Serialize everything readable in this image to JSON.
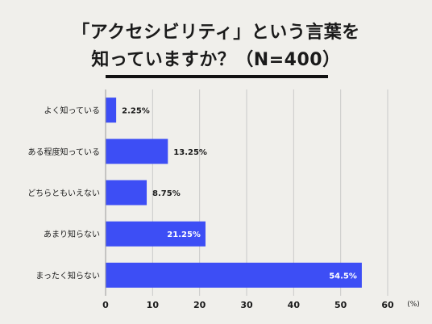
{
  "colors": {
    "bar": "#3d4ef5",
    "background": "#f0efeb",
    "grid": "#c9c9c9"
  },
  "chart_data": {
    "type": "bar",
    "orientation": "horizontal",
    "title": "「アクセシビリティ」という言葉を",
    "subtitle": "知っていますか？（N=400）",
    "categories": [
      "よく知っている",
      "ある程度知っている",
      "どちらともいえない",
      "あまり知らない",
      "まったく知らない"
    ],
    "values": [
      2.25,
      13.25,
      8.75,
      21.25,
      54.5
    ],
    "value_labels": [
      "2.25%",
      "13.25%",
      "8.75%",
      "21.25%",
      "54.5%"
    ],
    "xlim": [
      0,
      60
    ],
    "xticks": [
      "0",
      "10",
      "20",
      "30",
      "40",
      "50",
      "60"
    ],
    "xunit": "(%)",
    "grid": true
  }
}
